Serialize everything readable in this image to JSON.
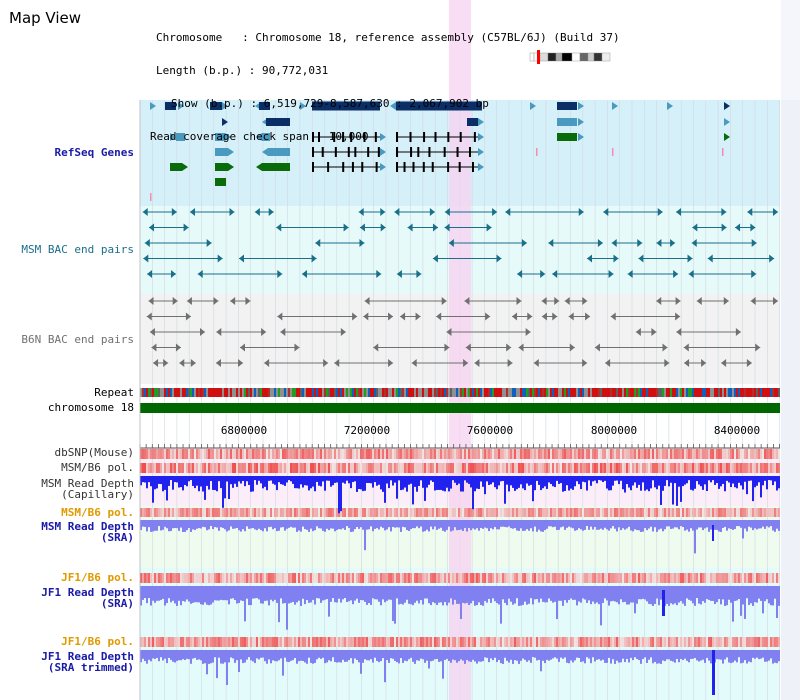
{
  "page": {
    "title": "Map View"
  },
  "info": {
    "chromosome_line": "Chromosome   : Chromosome 18, reference assembly (C57BL/6J) (Build 37)",
    "length_line": "Length (b.p.) : 90,772,031",
    "show_line": "Show (b.p.) : 6,519,729-8,587,630 : 2,067,902 bp",
    "span_line": "Read coverage check span : 10,000"
  },
  "tracks": {
    "refseq": "RefSeq Genes",
    "msm_bac": "MSM BAC end pairs",
    "b6n_bac": "B6N BAC end pairs",
    "repeat": "Repeat",
    "chromosome": "chromosome 18",
    "dbsnp": "dbSNP(Mouse)",
    "msm_b6_pol_1": "MSM/B6 pol.",
    "msm_depth_cap": "MSM Read Depth\n(Capillary)",
    "msm_b6_pol_2": "MSM/B6 pol.",
    "msm_depth_sra": "MSM Read Depth\n(SRA)",
    "jf1_b6_pol_1": "JF1/B6 pol.",
    "jf1_depth_sra": "JF1 Read Depth\n(SRA)",
    "jf1_b6_pol_2": "JF1/B6 pol.",
    "jf1_depth_trim": "JF1 Read Depth\n(SRA trimmed)"
  },
  "axis": {
    "ticks": [
      "6800000",
      "7200000",
      "7600000",
      "8000000",
      "8400000"
    ]
  },
  "colors": {
    "refseq_bg": "#d6f0fa",
    "msm_bac_bg": "#e6fafa",
    "b6n_bac_bg": "#f2f2f2",
    "snp_bg": "#fbeef8",
    "sra_bg": "#eefbee",
    "jf1_bg": "#e4fbfb",
    "highlight": "#f7d2f0",
    "gene_dark": "#0b2e66",
    "gene_mid": "#4a9ac0",
    "gene_green": "#0a6b0a",
    "bac_teal": "#1a6f8a",
    "bac_gray": "#707070",
    "chrom_green": "#006600",
    "depth_blue": "#2222ee",
    "depth_light": "#8080f0",
    "pol_red": "#ee3333",
    "label_blue": "#1a1aa6",
    "label_orange": "#e09a00"
  }
}
